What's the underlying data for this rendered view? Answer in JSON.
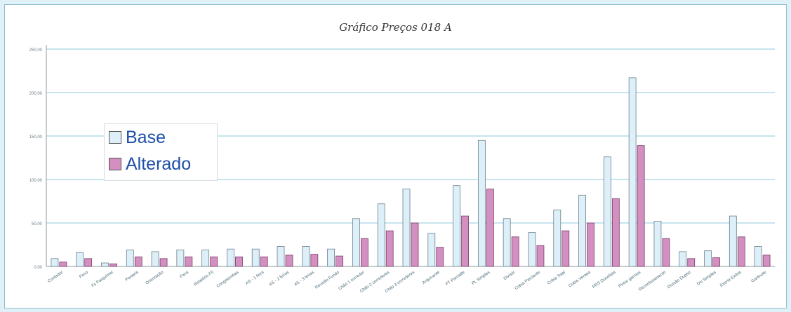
{
  "chart_data": {
    "type": "bar",
    "title": "Gráfico Preços 018 A",
    "ylim": [
      0,
      250
    ],
    "yticks": [
      "0,00",
      "50,00",
      "100,00",
      "150,00",
      "200,00",
      "250,00"
    ],
    "legend_position": "left",
    "grid": true,
    "categories": [
      "Contador",
      "Feno",
      "Fs Parquímet",
      "Portaria",
      "Orientação",
      "Faxa",
      "Relatório F5",
      "Congolombas",
      "AS - 1 feira",
      "AS - 2 feiras",
      "AS - 3 feiras",
      "Revisão Fundo",
      "Chão 1 corredor",
      "Chão 2 corredores",
      "Chão 3 corredores",
      "Arquivante",
      "FT Parcialle",
      "PL Simples",
      "Divisór",
      "Cobia Parciante",
      "Cobia Total",
      "Cobia Veraea",
      "PRS Ducelista",
      "Pintor garnius",
      "Reconfusamento",
      "Divisão Duplici",
      "Div Simples",
      "Exerta Exibia",
      "Garfinote"
    ],
    "series": [
      {
        "name": "Base",
        "color": "#ddf0fa",
        "values": [
          9,
          16,
          4,
          19,
          17,
          19,
          19,
          20,
          20,
          23,
          23,
          20,
          55,
          72,
          89,
          38,
          93,
          145,
          55,
          39,
          65,
          82,
          126,
          217,
          52,
          17,
          18,
          58,
          23
        ]
      },
      {
        "name": "Alterado",
        "color": "#d28fbf",
        "values": [
          5,
          9,
          3,
          11,
          9,
          11,
          11,
          11,
          11,
          13,
          14,
          12,
          32,
          41,
          50,
          22,
          58,
          89,
          34,
          24,
          41,
          50,
          78,
          139,
          32,
          9,
          10,
          34,
          13
        ]
      }
    ]
  }
}
